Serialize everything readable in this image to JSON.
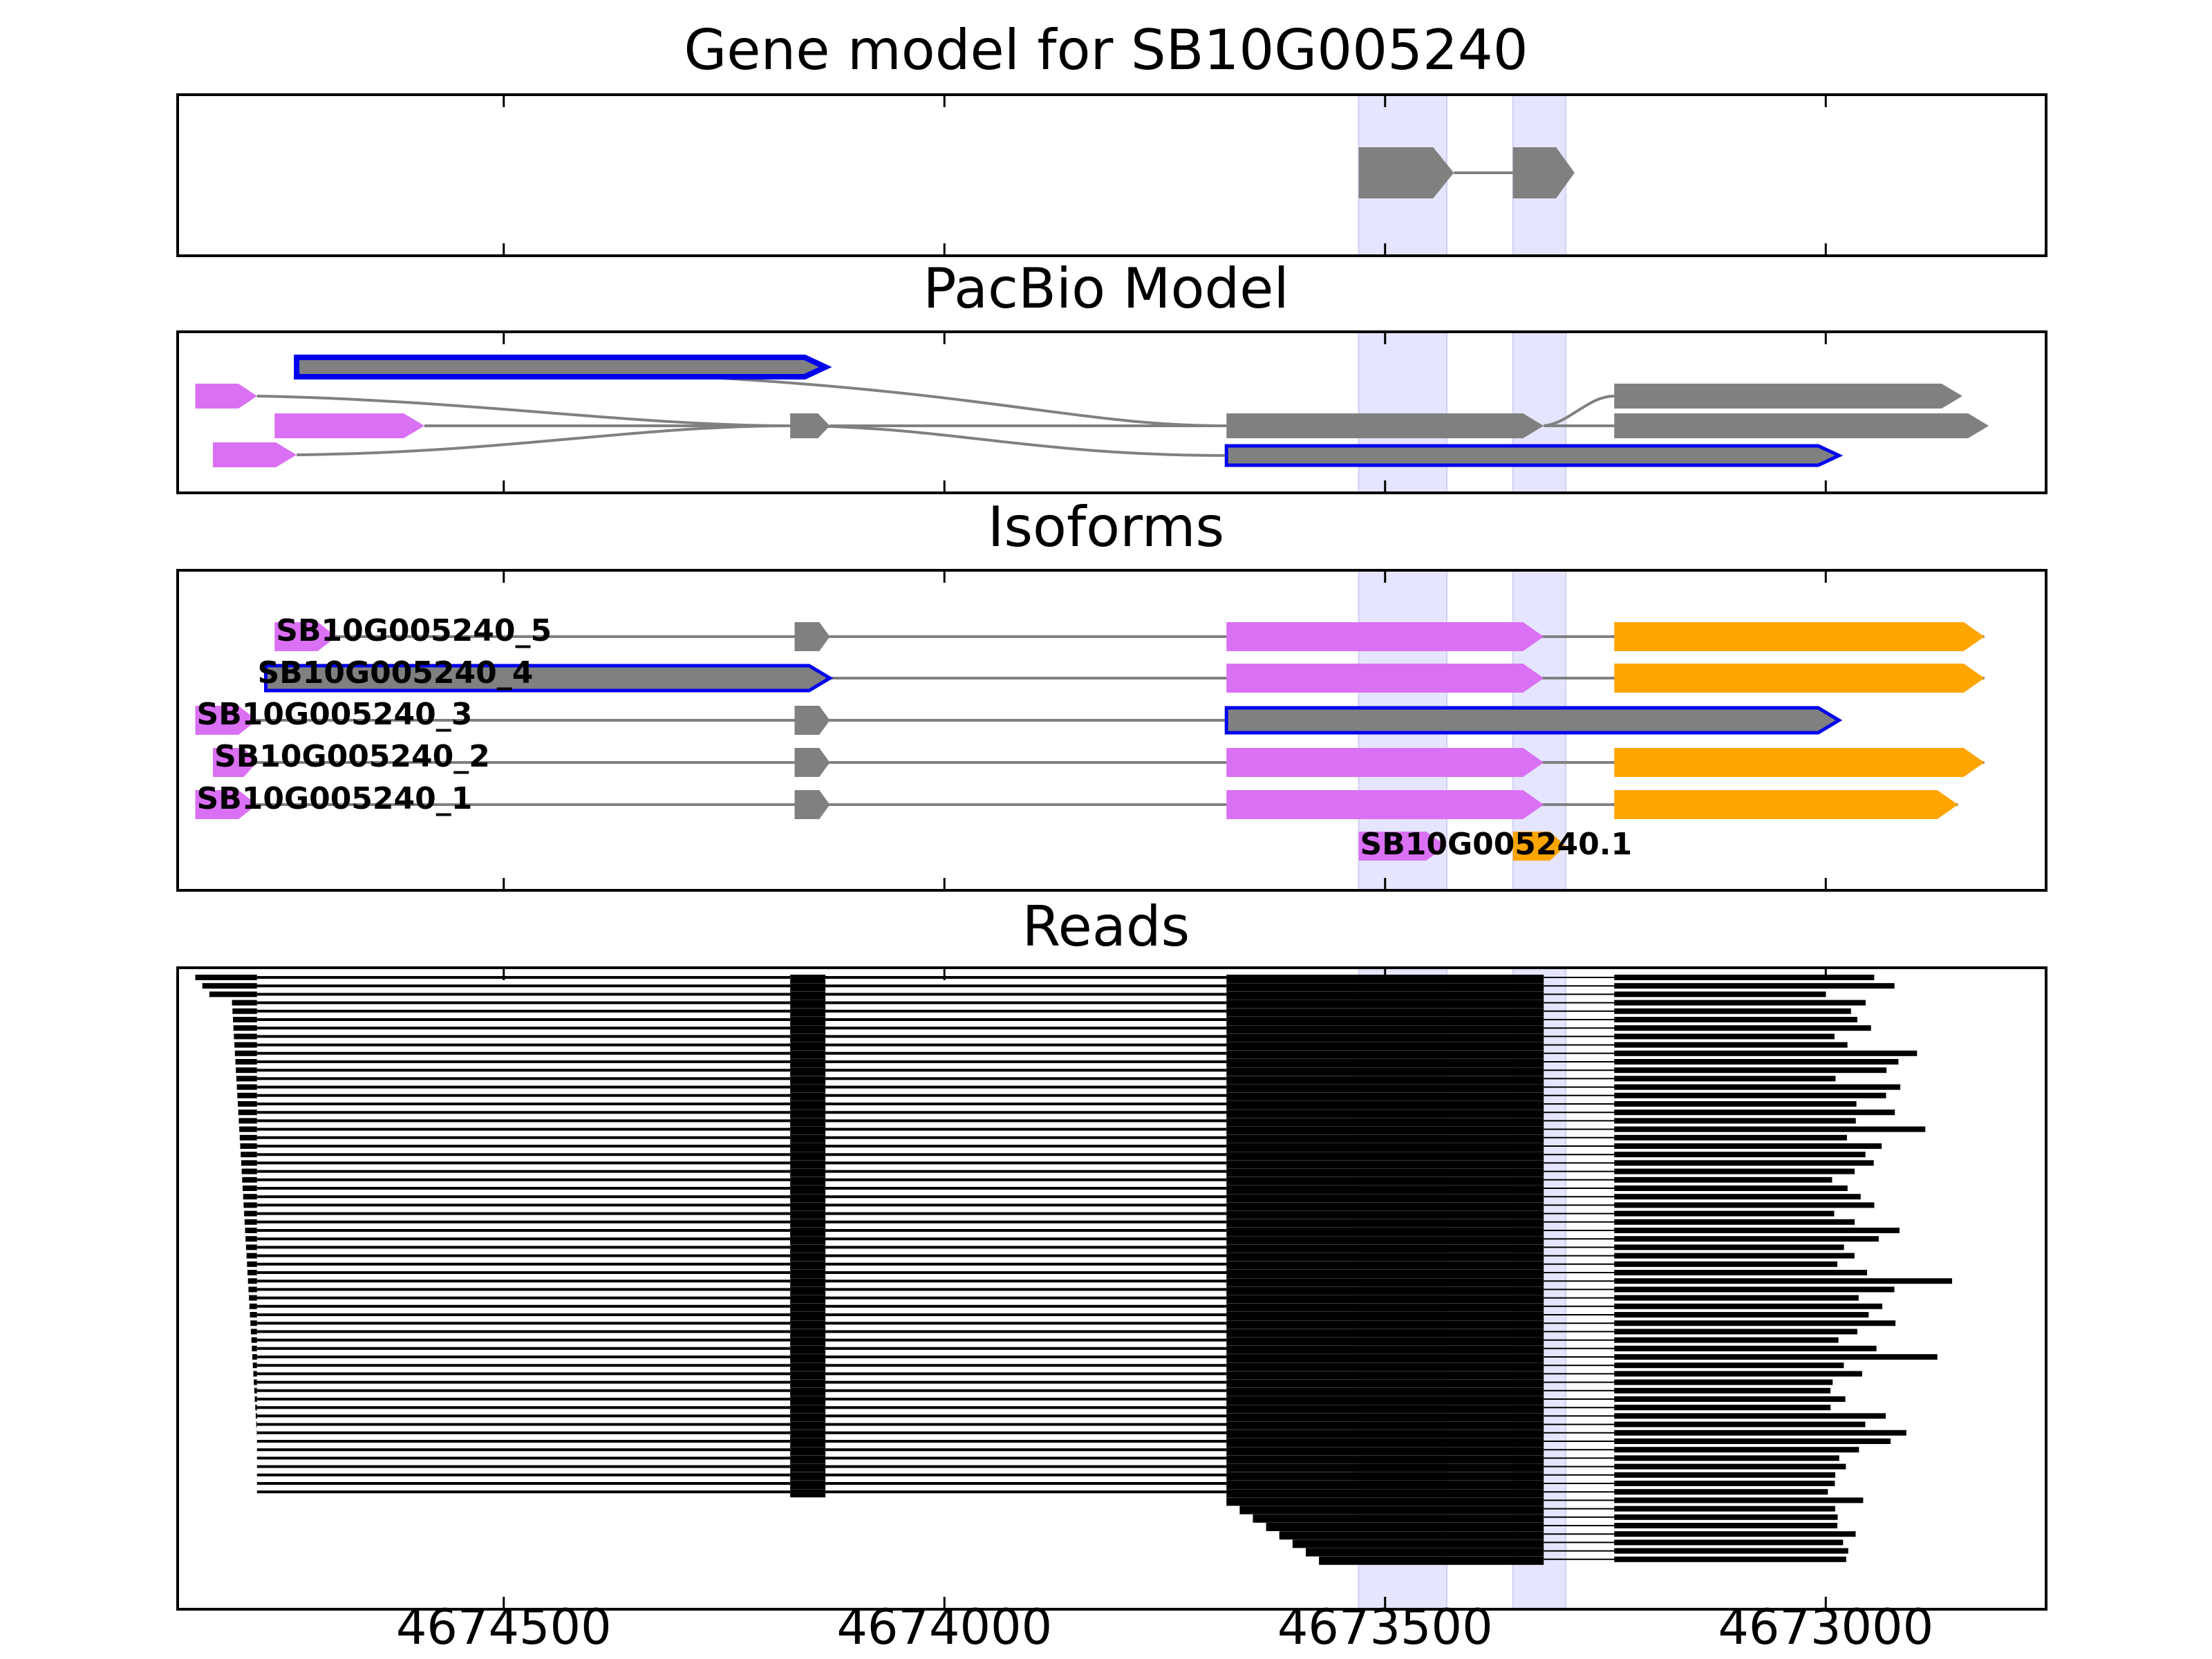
{
  "chart_data": {
    "type": "gene-track",
    "title": "Gene model for SB10G005240",
    "strand": "-",
    "xlim": [
      4674870,
      4672750
    ],
    "x_ticks": [
      4674500,
      4674000,
      4673500,
      4673000
    ],
    "x_tick_labels": [
      "4674500",
      "4674000",
      "4673500",
      "4673000"
    ],
    "highlight_regions": [
      [
        4673530,
        4673430
      ],
      [
        4673355,
        4673295
      ]
    ],
    "colors": {
      "exon_gray": "#808080",
      "exon_pink": "#DA70F4",
      "exon_orange": "#FFA500",
      "outline_blue": "#0000EE",
      "highlight": "#E5E5FF",
      "intron": "#808080",
      "read": "#000000"
    },
    "panels": [
      {
        "id": "gene-model",
        "title": "Gene model for SB10G005240",
        "tracks": [
          {
            "exons": [
              [
                4673530,
                4673422,
                "gray"
              ],
              [
                4673355,
                4673285,
                "gray"
              ]
            ]
          }
        ]
      },
      {
        "id": "pacbio",
        "title": "PacBio Model",
        "tracks": [
          {
            "row": 0,
            "exons": [
              [
                4674735,
                4674135,
                "gray",
                "blue"
              ]
            ]
          },
          {
            "row": 1,
            "exons": [
              [
                4674850,
                4674780,
                "pink"
              ]
            ]
          },
          {
            "row": 2,
            "exons": [
              [
                4674760,
                4674590,
                "pink"
              ],
              [
                4674175,
                4674130,
                "gray"
              ],
              [
                4673680,
                4673320,
                "gray"
              ]
            ]
          },
          {
            "row": 3,
            "exons": [
              [
                4674830,
                4674735,
                "pink"
              ]
            ]
          },
          {
            "row": 4,
            "exons": [
              [
                4673680,
                4672985,
                "blue-outline-gray"
              ]
            ]
          },
          {
            "row": 5,
            "exons": [
              [
                4673240,
                4672845,
                "gray"
              ]
            ]
          },
          {
            "row": 6,
            "exons": [
              [
                4673240,
                4672815,
                "gray"
              ]
            ]
          }
        ]
      },
      {
        "id": "isoforms",
        "title": "Isoforms",
        "isoforms": [
          {
            "label": "SB10G005240_5",
            "exons": [
              [
                4674760,
                4674690,
                "pink"
              ],
              [
                4674170,
                4674130,
                "gray"
              ],
              [
                4673680,
                4673320,
                "pink"
              ],
              [
                4673240,
                4672820,
                "orange"
              ]
            ]
          },
          {
            "label": "SB10G005240_4",
            "exons": [
              [
                4674770,
                4674130,
                "gray-blue"
              ],
              [
                4673680,
                4673320,
                "pink"
              ],
              [
                4673240,
                4672820,
                "orange"
              ]
            ]
          },
          {
            "label": "SB10G005240_3",
            "exons": [
              [
                4674850,
                4674780,
                "pink"
              ],
              [
                4674170,
                4674130,
                "gray"
              ],
              [
                4673680,
                4672985,
                "gray-blue"
              ]
            ]
          },
          {
            "label": "SB10G005240_2",
            "exons": [
              [
                4674830,
                4674780,
                "pink"
              ],
              [
                4674170,
                4674130,
                "gray"
              ],
              [
                4673680,
                4673320,
                "pink"
              ],
              [
                4673240,
                4672820,
                "orange"
              ]
            ]
          },
          {
            "label": "SB10G005240_1",
            "exons": [
              [
                4674850,
                4674780,
                "pink"
              ],
              [
                4674170,
                4674130,
                "gray"
              ],
              [
                4673680,
                4673320,
                "pink"
              ],
              [
                4673240,
                4672850,
                "orange"
              ]
            ]
          },
          {
            "label": "SB10G005240.1",
            "exons": [
              [
                4673530,
                4673430,
                "pink"
              ],
              [
                4673355,
                4673295,
                "orange"
              ]
            ]
          }
        ]
      },
      {
        "id": "reads",
        "title": "Reads",
        "read_count": 70,
        "read_model": {
          "first_exon_end": 4674780,
          "second_exon": [
            4674175,
            4674135
          ],
          "third_exon": [
            4673680,
            4673320
          ],
          "fourth_exon_start": 4673240
        }
      }
    ]
  }
}
